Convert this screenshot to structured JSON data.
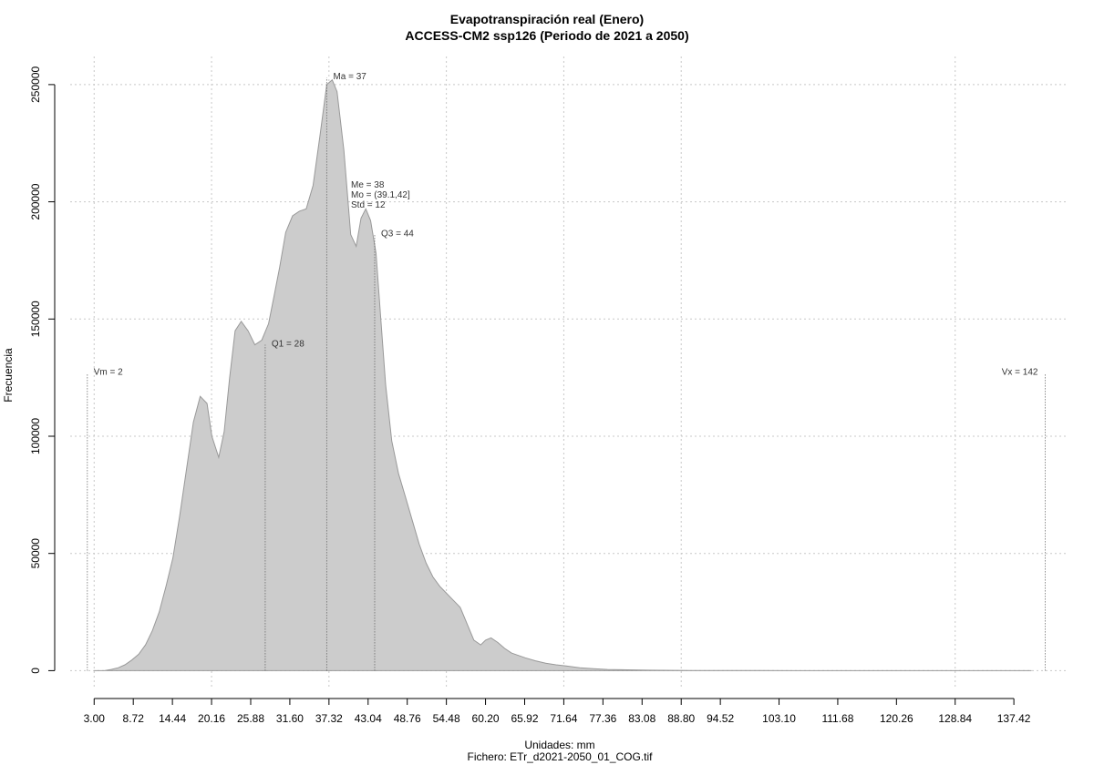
{
  "chart_data": {
    "type": "area",
    "title": "Evapotranspiración real (Enero)",
    "subtitle": "ACCESS-CM2 ssp126 (Periodo de 2021 a 2050)",
    "xlabel": "Unidades: mm",
    "ylabel": "Frecuencia",
    "footer": "Fichero: ETr_d2021-2050_01_COG.tif",
    "xlim": [
      -0.5,
      145
    ],
    "ylim": [
      -8000,
      262000
    ],
    "grid": true,
    "fill_color": "#cccccc",
    "line_color": "#999999",
    "x_ticks": [
      {
        "value": 3.0,
        "label": "3.00"
      },
      {
        "value": 8.72,
        "label": "8.72"
      },
      {
        "value": 14.44,
        "label": "14.44"
      },
      {
        "value": 20.16,
        "label": "20.16"
      },
      {
        "value": 25.88,
        "label": "25.88"
      },
      {
        "value": 31.6,
        "label": "31.60"
      },
      {
        "value": 37.32,
        "label": "37.32"
      },
      {
        "value": 43.04,
        "label": "43.04"
      },
      {
        "value": 48.76,
        "label": "48.76"
      },
      {
        "value": 54.48,
        "label": "54.48"
      },
      {
        "value": 60.2,
        "label": "60.20"
      },
      {
        "value": 65.92,
        "label": "65.92"
      },
      {
        "value": 71.64,
        "label": "71.64"
      },
      {
        "value": 77.36,
        "label": "77.36"
      },
      {
        "value": 83.08,
        "label": "83.08"
      },
      {
        "value": 88.8,
        "label": "88.80"
      },
      {
        "value": 94.52,
        "label": "94.52"
      },
      {
        "value": 103.1,
        "label": "103.10"
      },
      {
        "value": 111.68,
        "label": "111.68"
      },
      {
        "value": 120.26,
        "label": "120.26"
      },
      {
        "value": 128.84,
        "label": "128.84"
      },
      {
        "value": 137.42,
        "label": "137.42"
      }
    ],
    "x_grid": [
      3.0,
      20.16,
      37.32,
      54.48,
      71.64,
      88.8,
      128.84
    ],
    "y_ticks": [
      {
        "value": 0,
        "label": "0"
      },
      {
        "value": 50000,
        "label": "50000"
      },
      {
        "value": 100000,
        "label": "100000"
      },
      {
        "value": 150000,
        "label": "150000"
      },
      {
        "value": 200000,
        "label": "200000"
      },
      {
        "value": 250000,
        "label": "250000"
      }
    ],
    "x": [
      3.0,
      4.5,
      5.5,
      6.5,
      7.5,
      8.5,
      9.5,
      10.5,
      11.5,
      12.5,
      13.5,
      14.5,
      15.5,
      16.5,
      17.5,
      18.5,
      19.5,
      20.2,
      21.2,
      22.0,
      22.8,
      23.6,
      24.5,
      25.5,
      26.5,
      27.5,
      28.5,
      29.3,
      30.1,
      31.0,
      32.0,
      33.0,
      34.0,
      35.0,
      36.0,
      37.0,
      37.8,
      38.5,
      39.5,
      40.5,
      41.3,
      42.0,
      42.7,
      43.4,
      44.2,
      44.9,
      45.6,
      46.5,
      47.5,
      48.5,
      49.5,
      50.5,
      51.5,
      52.5,
      53.5,
      54.5,
      55.5,
      56.5,
      57.5,
      58.5,
      59.5,
      60.2,
      61.0,
      62.0,
      63.0,
      64.0,
      65.0,
      66.0,
      67.5,
      69.0,
      70.5,
      72.0,
      74.0,
      76.0,
      78.0,
      80.0,
      82.0,
      84.0,
      86.0,
      88.0,
      90.0,
      92.0,
      94.0,
      96.0,
      100.0,
      105.0,
      110.0,
      115.0,
      120.0,
      125.0,
      130.0,
      135.0,
      138.0,
      140.0
    ],
    "y": [
      0,
      0,
      500,
      1200,
      2500,
      4500,
      7000,
      11000,
      17000,
      25000,
      36000,
      48000,
      66000,
      86000,
      106000,
      117000,
      114000,
      100000,
      91000,
      102000,
      125000,
      145000,
      149000,
      145000,
      139000,
      141000,
      148000,
      160000,
      172000,
      187000,
      194000,
      196000,
      197000,
      207000,
      228000,
      250000,
      252000,
      247000,
      222000,
      186000,
      181000,
      193000,
      197000,
      192000,
      178000,
      150000,
      122000,
      98000,
      84000,
      74000,
      64000,
      54000,
      46000,
      40000,
      36000,
      33000,
      30000,
      27000,
      20000,
      13000,
      11000,
      13000,
      14000,
      12000,
      9500,
      7500,
      6500,
      5500,
      4200,
      3200,
      2500,
      2000,
      1200,
      800,
      500,
      400,
      300,
      200,
      150,
      100,
      80,
      60,
      50,
      40,
      30,
      20,
      15,
      10,
      8,
      5,
      3,
      0,
      0,
      0
    ],
    "markers": [
      {
        "name": "Vm",
        "label": "Vm = 2",
        "x": 2.0,
        "y_top": 127000
      },
      {
        "name": "Q1",
        "label": "Q1 = 28",
        "x": 28.0,
        "y_top": 139000
      },
      {
        "name": "Ma",
        "label": "Ma = 37",
        "x": 37.0,
        "y_top": 253000
      },
      {
        "name": "Q3",
        "label": "Q3 = 44",
        "x": 44.0,
        "y_top": 186000
      },
      {
        "name": "Vx",
        "label": "Vx = 142",
        "x": 142.0,
        "y_top": 127000
      }
    ],
    "stats": [
      {
        "label": "Me = 38"
      },
      {
        "label": "Mo = (39.1,42]"
      },
      {
        "label": "Std = 12"
      }
    ]
  }
}
